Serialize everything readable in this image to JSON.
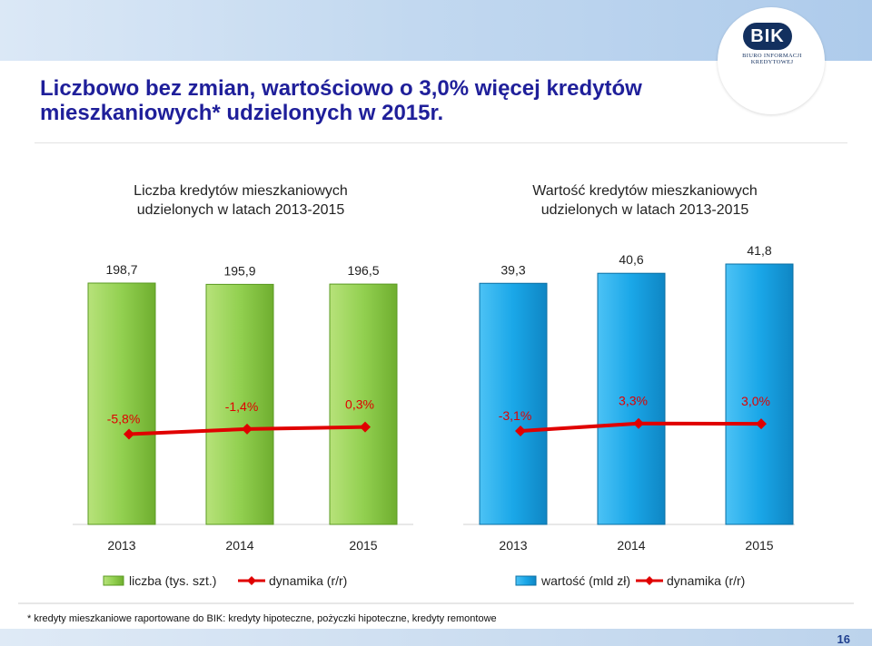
{
  "header": {
    "title": "Liczbowo bez zmian, wartościowo o 3,0% więcej kredytów mieszkaniowych* udzielonych w 2015r.",
    "logo": "BIK",
    "logo_caption": "BIURO INFORMACJI KREDYTOWEJ"
  },
  "footnote": "* kredyty mieszkaniowe raportowane do BIK: kredyty hipoteczne, pożyczki hipoteczne, kredyty remontowe",
  "page_number": "16",
  "colors": {
    "green": "#92d050",
    "blue": "#1aa7e8",
    "red": "#e00000",
    "title": "#1f1f9a"
  },
  "chart_data": [
    {
      "type": "bar",
      "title": "Liczba kredytów mieszkaniowych udzielonych w latach 2013-2015",
      "categories": [
        "2013",
        "2014",
        "2015"
      ],
      "series": [
        {
          "name": "liczba (tys. szt.)",
          "values": [
            198.7,
            195.9,
            196.5
          ],
          "labels": [
            "198,7",
            "195,9",
            "196,5"
          ]
        },
        {
          "name": "dynamika (r/r)",
          "type": "line",
          "values": [
            -5.8,
            -1.4,
            0.3
          ],
          "labels": [
            "-5,8%",
            "-1,4%",
            "0,3%"
          ]
        }
      ]
    },
    {
      "type": "bar",
      "title": "Wartość kredytów mieszkaniowych udzielonych w latach 2013-2015",
      "categories": [
        "2013",
        "2014",
        "2015"
      ],
      "series": [
        {
          "name": "wartość (mld zł)",
          "values": [
            39.3,
            40.6,
            41.8
          ],
          "labels": [
            "39,3",
            "40,6",
            "41,8"
          ]
        },
        {
          "name": "dynamika (r/r)",
          "type": "line",
          "values": [
            -3.1,
            3.3,
            3.0
          ],
          "labels": [
            "-3,1%",
            "3,3%",
            "3,0%"
          ]
        }
      ]
    }
  ]
}
